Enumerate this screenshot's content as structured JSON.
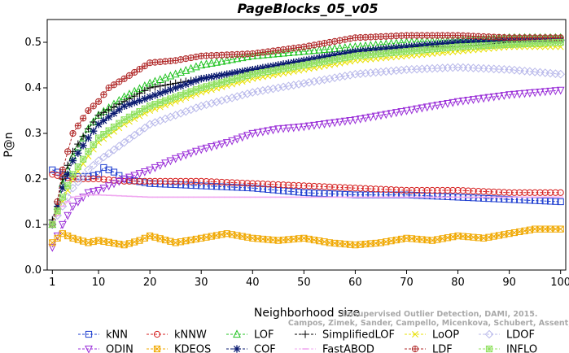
{
  "chart_data": {
    "type": "line",
    "title": "PageBlocks_05_v05",
    "xlabel": "Neighborhood size",
    "ylabel": "P@n",
    "xlim": [
      0,
      101
    ],
    "ylim": [
      0,
      0.55
    ],
    "xticks": [
      "1",
      "10",
      "20",
      "30",
      "40",
      "50",
      "60",
      "70",
      "80",
      "90",
      "100"
    ],
    "yticks": [
      "0.0",
      "0.1",
      "0.2",
      "0.3",
      "0.4",
      "0.5"
    ],
    "grid": false,
    "legend_position": "bottom",
    "credit": [
      "Campos, Zimek, Sander, Campello, Micenkova, Schubert, Assent, Houle",
      "Unsupervised Outlier Detection, DAMI, 2015."
    ],
    "series": [
      {
        "name": "kNN",
        "color": "#1f3fd0",
        "marker": "square",
        "points": [
          [
            1,
            0.22
          ],
          [
            3,
            0.21
          ],
          [
            5,
            0.205
          ],
          [
            8,
            0.205
          ],
          [
            10,
            0.21
          ],
          [
            11,
            0.225
          ],
          [
            13,
            0.215
          ],
          [
            15,
            0.2
          ],
          [
            20,
            0.19
          ],
          [
            30,
            0.185
          ],
          [
            40,
            0.18
          ],
          [
            50,
            0.17
          ],
          [
            60,
            0.165
          ],
          [
            70,
            0.165
          ],
          [
            80,
            0.16
          ],
          [
            90,
            0.155
          ],
          [
            100,
            0.15
          ]
        ]
      },
      {
        "name": "kNNW",
        "color": "#d62020",
        "marker": "circle",
        "points": [
          [
            1,
            0.21
          ],
          [
            3,
            0.205
          ],
          [
            5,
            0.2
          ],
          [
            8,
            0.2
          ],
          [
            10,
            0.2
          ],
          [
            15,
            0.195
          ],
          [
            20,
            0.195
          ],
          [
            30,
            0.195
          ],
          [
            40,
            0.19
          ],
          [
            50,
            0.185
          ],
          [
            60,
            0.18
          ],
          [
            70,
            0.175
          ],
          [
            80,
            0.175
          ],
          [
            90,
            0.17
          ],
          [
            100,
            0.17
          ]
        ]
      },
      {
        "name": "LOF",
        "color": "#22c322",
        "marker": "triangle",
        "points": [
          [
            1,
            0.1
          ],
          [
            2,
            0.14
          ],
          [
            3,
            0.19
          ],
          [
            5,
            0.25
          ],
          [
            8,
            0.31
          ],
          [
            10,
            0.34
          ],
          [
            15,
            0.38
          ],
          [
            20,
            0.41
          ],
          [
            25,
            0.43
          ],
          [
            30,
            0.45
          ],
          [
            40,
            0.47
          ],
          [
            50,
            0.48
          ],
          [
            60,
            0.49
          ],
          [
            70,
            0.5
          ],
          [
            80,
            0.505
          ],
          [
            90,
            0.51
          ],
          [
            100,
            0.51
          ]
        ]
      },
      {
        "name": "SimplifiedLOF",
        "color": "#000000",
        "marker": "plus",
        "points": [
          [
            1,
            0.11
          ],
          [
            2,
            0.15
          ],
          [
            3,
            0.2
          ],
          [
            5,
            0.26
          ],
          [
            8,
            0.31
          ],
          [
            10,
            0.34
          ],
          [
            15,
            0.37
          ],
          [
            20,
            0.4
          ],
          [
            25,
            0.41
          ],
          [
            30,
            0.42
          ],
          [
            40,
            0.44
          ],
          [
            50,
            0.46
          ],
          [
            60,
            0.48
          ],
          [
            70,
            0.49
          ],
          [
            80,
            0.49
          ],
          [
            90,
            0.5
          ],
          [
            100,
            0.505
          ]
        ]
      },
      {
        "name": "LoOP",
        "color": "#e8e000",
        "marker": "x",
        "points": [
          [
            1,
            0.1
          ],
          [
            3,
            0.15
          ],
          [
            5,
            0.2
          ],
          [
            8,
            0.25
          ],
          [
            10,
            0.28
          ],
          [
            15,
            0.32
          ],
          [
            20,
            0.35
          ],
          [
            30,
            0.39
          ],
          [
            40,
            0.42
          ],
          [
            50,
            0.44
          ],
          [
            60,
            0.46
          ],
          [
            70,
            0.47
          ],
          [
            80,
            0.48
          ],
          [
            90,
            0.49
          ],
          [
            100,
            0.49
          ]
        ]
      },
      {
        "name": "LDOF",
        "color": "#b8b8ea",
        "marker": "diamond",
        "points": [
          [
            1,
            0.1
          ],
          [
            3,
            0.14
          ],
          [
            5,
            0.18
          ],
          [
            8,
            0.22
          ],
          [
            10,
            0.24
          ],
          [
            15,
            0.28
          ],
          [
            20,
            0.32
          ],
          [
            30,
            0.36
          ],
          [
            40,
            0.39
          ],
          [
            50,
            0.41
          ],
          [
            60,
            0.43
          ],
          [
            70,
            0.44
          ],
          [
            80,
            0.445
          ],
          [
            90,
            0.44
          ],
          [
            100,
            0.43
          ]
        ]
      },
      {
        "name": "ODIN",
        "color": "#9a2fd8",
        "marker": "triangle-down",
        "points": [
          [
            1,
            0.05
          ],
          [
            3,
            0.1
          ],
          [
            5,
            0.14
          ],
          [
            8,
            0.17
          ],
          [
            10,
            0.175
          ],
          [
            15,
            0.2
          ],
          [
            20,
            0.22
          ],
          [
            25,
            0.245
          ],
          [
            30,
            0.265
          ],
          [
            35,
            0.28
          ],
          [
            40,
            0.3
          ],
          [
            45,
            0.31
          ],
          [
            50,
            0.315
          ],
          [
            60,
            0.33
          ],
          [
            70,
            0.35
          ],
          [
            80,
            0.37
          ],
          [
            90,
            0.385
          ],
          [
            100,
            0.395
          ]
        ]
      },
      {
        "name": "KDEOS",
        "color": "#f0a800",
        "marker": "square-x",
        "points": [
          [
            1,
            0.06
          ],
          [
            3,
            0.08
          ],
          [
            5,
            0.07
          ],
          [
            8,
            0.06
          ],
          [
            10,
            0.065
          ],
          [
            15,
            0.055
          ],
          [
            18,
            0.065
          ],
          [
            20,
            0.075
          ],
          [
            25,
            0.06
          ],
          [
            30,
            0.07
          ],
          [
            35,
            0.08
          ],
          [
            40,
            0.07
          ],
          [
            45,
            0.065
          ],
          [
            50,
            0.07
          ],
          [
            55,
            0.06
          ],
          [
            60,
            0.055
          ],
          [
            65,
            0.06
          ],
          [
            70,
            0.07
          ],
          [
            75,
            0.065
          ],
          [
            80,
            0.075
          ],
          [
            85,
            0.07
          ],
          [
            90,
            0.08
          ],
          [
            95,
            0.09
          ],
          [
            100,
            0.09
          ]
        ]
      },
      {
        "name": "COF",
        "color": "#0a1a70",
        "marker": "star",
        "points": [
          [
            1,
            0.1
          ],
          [
            3,
            0.18
          ],
          [
            5,
            0.24
          ],
          [
            8,
            0.29
          ],
          [
            10,
            0.32
          ],
          [
            15,
            0.36
          ],
          [
            20,
            0.38
          ],
          [
            25,
            0.4
          ],
          [
            30,
            0.42
          ],
          [
            40,
            0.44
          ],
          [
            50,
            0.46
          ],
          [
            60,
            0.48
          ],
          [
            70,
            0.49
          ],
          [
            80,
            0.5
          ],
          [
            90,
            0.505
          ],
          [
            100,
            0.505
          ]
        ]
      },
      {
        "name": "FastABOD",
        "color": "#f0a8f0",
        "marker": "dash",
        "points": [
          [
            1,
            0.1
          ],
          [
            3,
            0.14
          ],
          [
            5,
            0.16
          ],
          [
            8,
            0.165
          ],
          [
            10,
            0.165
          ],
          [
            20,
            0.16
          ],
          [
            30,
            0.16
          ],
          [
            40,
            0.16
          ],
          [
            50,
            0.16
          ],
          [
            60,
            0.16
          ],
          [
            70,
            0.16
          ],
          [
            80,
            0.16
          ],
          [
            90,
            0.16
          ],
          [
            100,
            0.16
          ]
        ]
      },
      {
        "name": "LDF",
        "color": "#b02828",
        "marker": "circle-plus",
        "points": [
          [
            1,
            0.1
          ],
          [
            2,
            0.15
          ],
          [
            3,
            0.22
          ],
          [
            5,
            0.3
          ],
          [
            8,
            0.35
          ],
          [
            10,
            0.37
          ],
          [
            12,
            0.4
          ],
          [
            15,
            0.42
          ],
          [
            20,
            0.455
          ],
          [
            25,
            0.46
          ],
          [
            30,
            0.47
          ],
          [
            40,
            0.475
          ],
          [
            50,
            0.49
          ],
          [
            60,
            0.51
          ],
          [
            70,
            0.515
          ],
          [
            80,
            0.515
          ],
          [
            90,
            0.51
          ],
          [
            100,
            0.51
          ]
        ]
      },
      {
        "name": "INFLO",
        "color": "#90e060",
        "marker": "square-star",
        "points": [
          [
            1,
            0.1
          ],
          [
            3,
            0.16
          ],
          [
            5,
            0.21
          ],
          [
            8,
            0.26
          ],
          [
            10,
            0.29
          ],
          [
            15,
            0.33
          ],
          [
            20,
            0.36
          ],
          [
            30,
            0.4
          ],
          [
            40,
            0.43
          ],
          [
            50,
            0.45
          ],
          [
            60,
            0.47
          ],
          [
            70,
            0.48
          ],
          [
            80,
            0.49
          ],
          [
            90,
            0.495
          ],
          [
            100,
            0.5
          ]
        ]
      }
    ]
  }
}
